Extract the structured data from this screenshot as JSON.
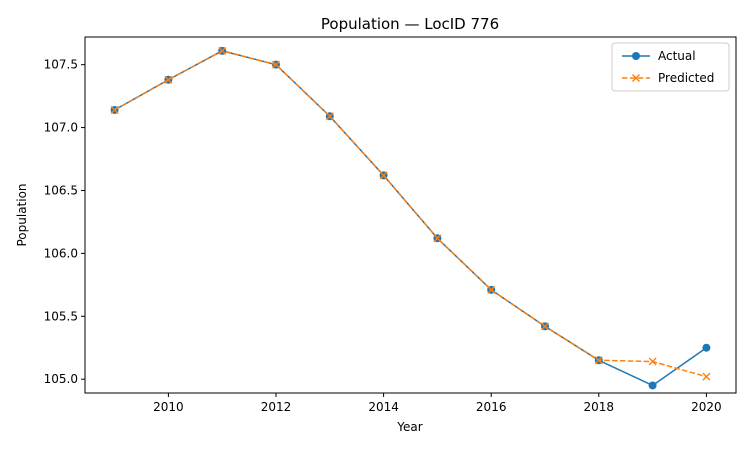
{
  "chart_data": {
    "type": "line",
    "title": "Population — LocID 776",
    "xlabel": "Year",
    "ylabel": "Population",
    "x": [
      2009,
      2010,
      2011,
      2012,
      2013,
      2014,
      2015,
      2016,
      2017,
      2018,
      2019,
      2020
    ],
    "xlim": [
      2008.45,
      2020.55
    ],
    "ylim": [
      104.89,
      107.72
    ],
    "xticks": [
      2010,
      2012,
      2014,
      2016,
      2018,
      2020
    ],
    "yticks": [
      105.0,
      105.5,
      106.0,
      106.5,
      107.0,
      107.5
    ],
    "ytick_labels": [
      "105.0",
      "105.5",
      "106.0",
      "106.5",
      "107.0",
      "107.5"
    ],
    "grid": false,
    "legend_position": "top-right",
    "series": [
      {
        "name": "Actual",
        "color": "#1f77b4",
        "marker": "circle",
        "linestyle": "solid",
        "values": [
          107.14,
          107.38,
          107.61,
          107.5,
          107.09,
          106.62,
          106.12,
          105.71,
          105.42,
          105.15,
          104.95,
          105.25
        ]
      },
      {
        "name": "Predicted",
        "color": "#ff7f0e",
        "marker": "x",
        "linestyle": "dashed",
        "values": [
          107.14,
          107.38,
          107.61,
          107.5,
          107.09,
          106.62,
          106.12,
          105.71,
          105.42,
          105.15,
          105.14,
          105.02
        ]
      }
    ]
  }
}
